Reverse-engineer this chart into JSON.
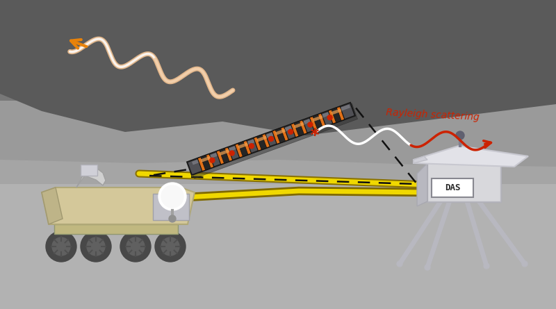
{
  "figsize": [
    8.0,
    4.45
  ],
  "dpi": 100,
  "orange_color": "#E8820A",
  "light_orange": "#F0C090",
  "red_color": "#CC2200",
  "yellow_color": "#F0D800",
  "white_color": "#FFFFFF",
  "rover_body_color": "#D4C89A",
  "station_color": "#C8C8CC",
  "cable_dark": "#505055",
  "cable_orange": "#E07018",
  "rayleigh_label": "Rayleigh scattering",
  "das_label": "DAS",
  "wheel_color": "#484848",
  "bg_upper": "#787878",
  "bg_lower": "#A8A8A8",
  "mountain_color": "#606060",
  "ground_color": "#9A9A9A"
}
